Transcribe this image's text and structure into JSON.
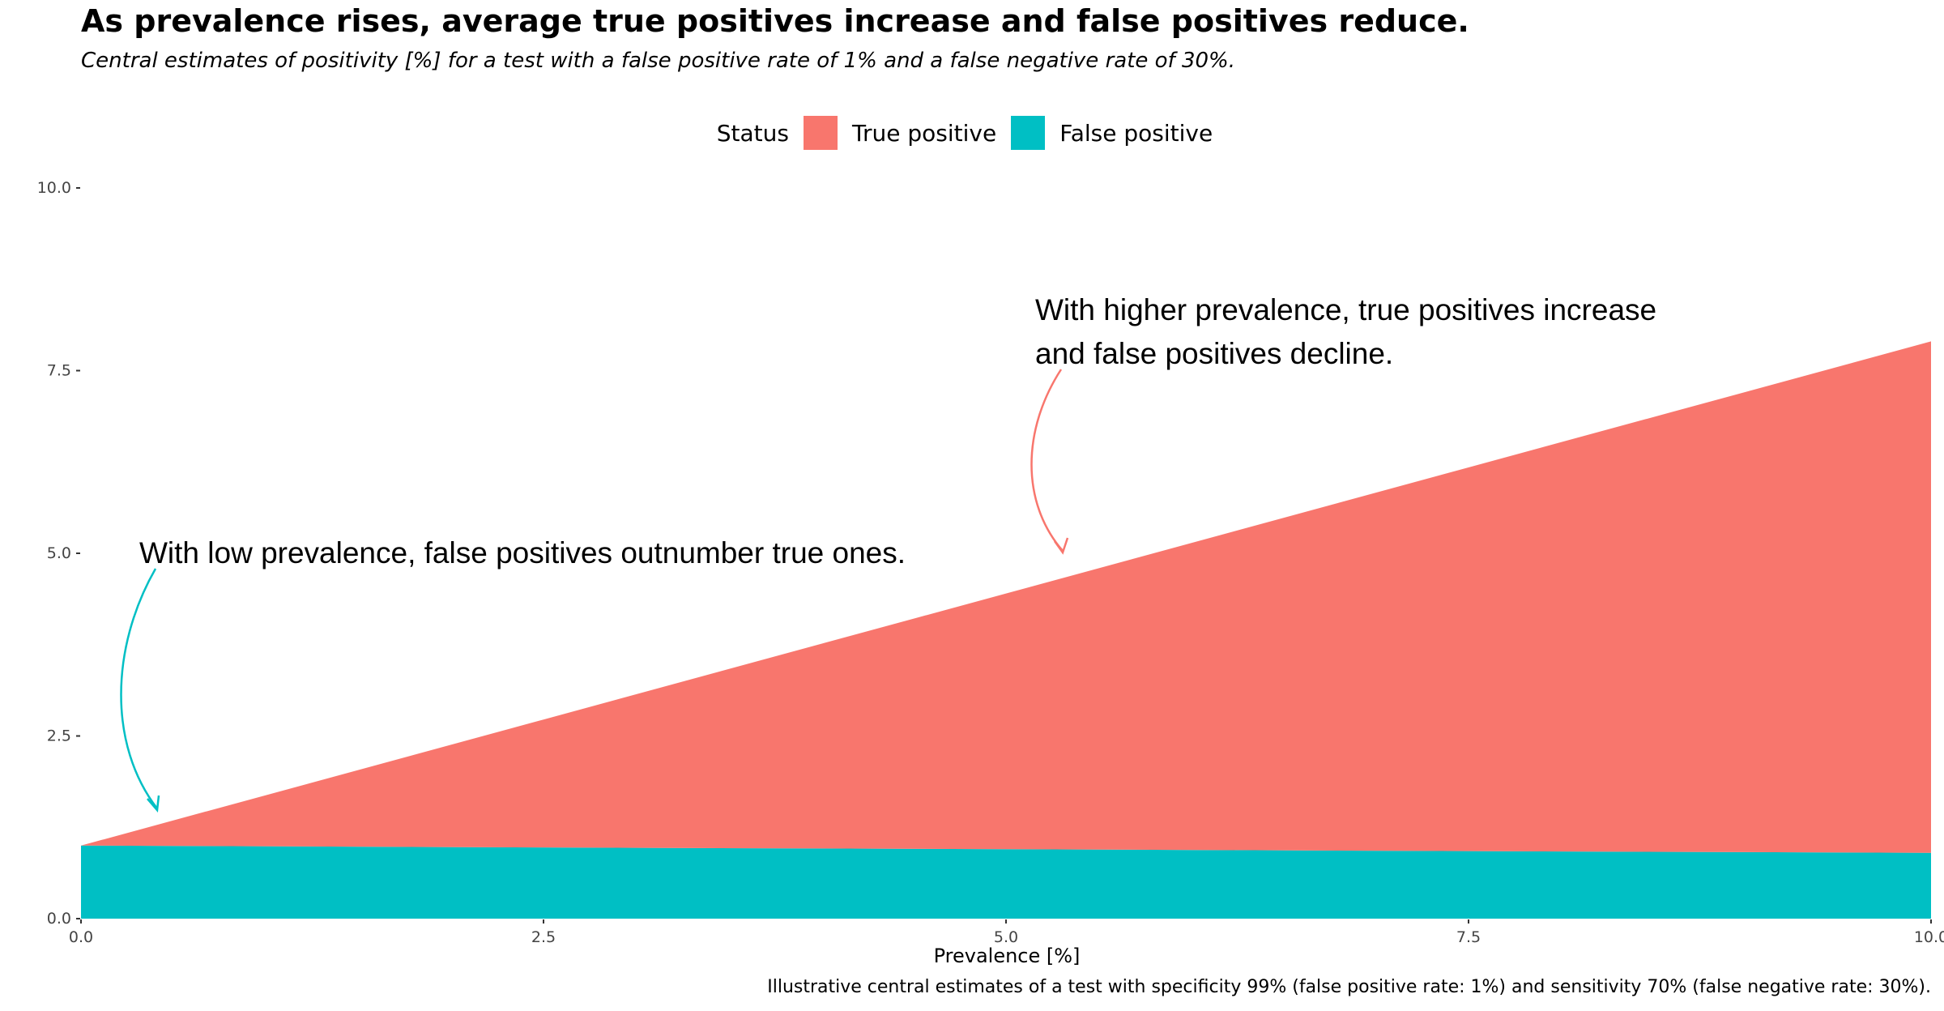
{
  "title": "As prevalence rises, average true positives increase and false positives reduce.",
  "subtitle": "Central estimates of positivity [%] for a test with a false positive rate of 1% and a false negative rate of 30%.",
  "caption": "Illustrative central estimates of a test with specificity 99% (false positive rate: 1%) and sensitivity 70% (false negative rate: 30%).",
  "legend": {
    "title": "Status",
    "items": [
      {
        "label": "True positive",
        "color": "#F8766D"
      },
      {
        "label": "False positive",
        "color": "#00BFC4"
      }
    ]
  },
  "annotations": [
    {
      "text": "With higher prevalence, true positives increase\nand false positives decline.",
      "color": "#F8766D"
    },
    {
      "text": "With low prevalence, false positives outnumber true ones.",
      "color": "#00BFC4"
    }
  ],
  "chart_data": {
    "type": "area",
    "stacked": true,
    "xlabel": "Prevalence [%]",
    "ylabel": "",
    "xlim": [
      0,
      10
    ],
    "ylim": [
      0,
      10
    ],
    "xticks": [
      "0.0",
      "2.5",
      "5.0",
      "7.5",
      "10.0"
    ],
    "yticks": [
      "0.0",
      "2.5",
      "5.0",
      "7.5",
      "10.0"
    ],
    "x": [
      0,
      2.5,
      5,
      7.5,
      10
    ],
    "series": [
      {
        "name": "False positive",
        "color": "#00BFC4",
        "values": [
          1.0,
          0.975,
          0.95,
          0.925,
          0.9
        ]
      },
      {
        "name": "True positive",
        "color": "#F8766D",
        "values": [
          0.0,
          1.75,
          3.5,
          5.25,
          7.0
        ]
      }
    ],
    "grid": false,
    "legend_position": "top"
  }
}
